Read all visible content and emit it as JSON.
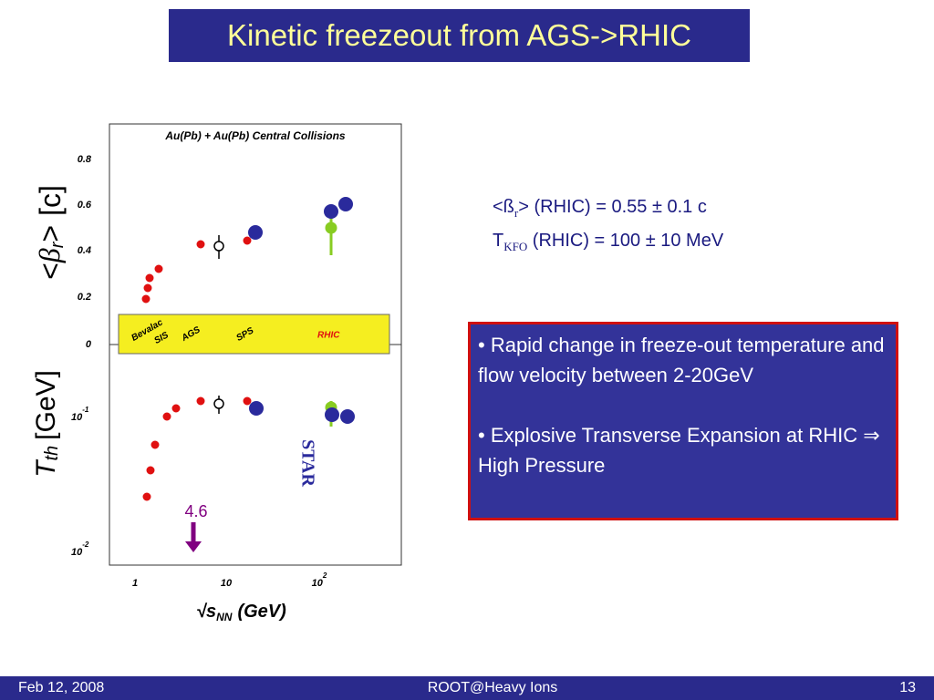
{
  "title": "Kinetic freezeout from AGS->RHIC",
  "figure": {
    "header": "Au(Pb) + Au(Pb) Central Collisions",
    "top_yticks": [
      "0.8",
      "0.6",
      "0.4",
      "0.2",
      "0"
    ],
    "bottom_yticks": [
      {
        "base": "10",
        "exp": "-1"
      },
      {
        "base": "10",
        "exp": "-2"
      }
    ],
    "xticks": [
      {
        "base": "1"
      },
      {
        "base": "10"
      },
      {
        "base": "10",
        "exp": "2"
      }
    ],
    "band_labels": [
      "Bevalac",
      "SIS",
      "AGS",
      "SPS",
      "RHIC"
    ],
    "x_label": {
      "root": "√",
      "s": "s",
      "sub": "NN",
      "unit": "(GeV)"
    },
    "y_label_top": {
      "open": "<",
      "beta": "β",
      "sub": "r",
      "close": ">",
      "unit": "[c]"
    },
    "y_label_bottom": {
      "t": "T",
      "sub": "th",
      "unit": "[GeV]"
    },
    "star": "STAR",
    "arrow_label": "4.6"
  },
  "results": [
    {
      "pre": "<ß",
      "sub": "r",
      "post": "> (RHIC)  =  0.55  ± 0.1 c"
    },
    {
      "pre": "T",
      "sub": "KFO",
      "post": " (RHIC)  =  100 ± 10 MeV"
    }
  ],
  "bullets": [
    "• Rapid change in freeze-out temperature and flow velocity between 2-20GeV",
    "• Explosive Transverse Expansion at RHIC ⇒ High Pressure"
  ],
  "footer": {
    "date": "Feb 12, 2008",
    "event": "ROOT@Heavy Ions",
    "page": "13"
  }
}
